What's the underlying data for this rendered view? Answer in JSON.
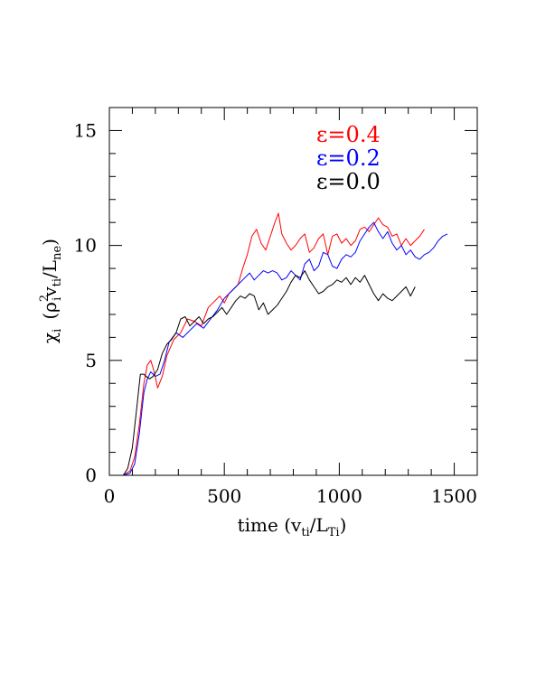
{
  "chart_data": {
    "type": "line",
    "xlabel": "time (v_ti/L_Ti)",
    "xlabel_main": "time (v",
    "xlabel_sub1": "ti",
    "xlabel_mid": "/L",
    "xlabel_sub2": "Ti",
    "xlabel_end": ")",
    "ylabel": "χ_i (ρ_i² v_ti/L_ne)",
    "ylabel_chi": "χ",
    "ylabel_i": "i",
    "ylabel_open": "(ρ",
    "ylabel_sup2": "2",
    "ylabel_sub_i": "i",
    "ylabel_v": "v",
    "ylabel_sub_ti": "ti",
    "ylabel_L": "/L",
    "ylabel_sub_ne": "ne",
    "ylabel_close": ")",
    "xlim": [
      0,
      1600
    ],
    "ylim": [
      0,
      16
    ],
    "xticks": [
      0,
      500,
      1000,
      1500
    ],
    "xtick_labels": [
      "0",
      "500",
      "1000",
      "1500"
    ],
    "yticks": [
      0,
      5,
      10,
      15
    ],
    "ytick_labels": [
      "0",
      "5",
      "10",
      "15"
    ],
    "legend_placement": "top-right",
    "series": [
      {
        "name": "ε=0.4",
        "color": "#ff0000",
        "x": [
          0,
          60,
          90,
          110,
          130,
          150,
          165,
          180,
          195,
          210,
          230,
          250,
          280,
          310,
          340,
          370,
          400,
          430,
          460,
          480,
          500,
          520,
          540,
          560,
          580,
          600,
          620,
          640,
          660,
          680,
          700,
          720,
          735,
          750,
          770,
          790,
          810,
          830,
          850,
          870,
          890,
          910,
          930,
          950,
          970,
          990,
          1010,
          1030,
          1050,
          1070,
          1090,
          1110,
          1130,
          1150,
          1170,
          1190,
          1210,
          1230,
          1250,
          1270,
          1290,
          1310,
          1330,
          1350,
          1370
        ],
        "y": [
          0,
          0,
          0.2,
          0.8,
          2.2,
          4.0,
          4.8,
          5.0,
          4.5,
          3.8,
          4.3,
          5.2,
          5.9,
          6.2,
          6.8,
          6.7,
          6.5,
          7.3,
          7.6,
          7.8,
          7.5,
          7.9,
          8.1,
          8.3,
          9.0,
          9.6,
          10.4,
          10.7,
          10.1,
          9.8,
          10.4,
          11.0,
          11.4,
          10.5,
          10.1,
          9.8,
          10.0,
          10.3,
          10.5,
          9.7,
          9.9,
          10.3,
          10.5,
          9.6,
          10.4,
          10.5,
          10.1,
          10.3,
          10.0,
          10.2,
          10.7,
          10.8,
          10.6,
          10.9,
          11.2,
          10.9,
          10.8,
          10.4,
          10.5,
          10.0,
          10.3,
          10.0,
          10.2,
          10.4,
          10.7
        ]
      },
      {
        "name": "ε=0.2",
        "color": "#0000ff",
        "x": [
          0,
          60,
          90,
          110,
          130,
          150,
          165,
          180,
          200,
          220,
          240,
          260,
          290,
          320,
          350,
          380,
          410,
          440,
          470,
          500,
          530,
          560,
          590,
          610,
          630,
          650,
          670,
          690,
          710,
          730,
          750,
          770,
          790,
          810,
          830,
          850,
          870,
          890,
          910,
          930,
          950,
          970,
          990,
          1010,
          1030,
          1050,
          1070,
          1090,
          1110,
          1130,
          1150,
          1170,
          1190,
          1210,
          1230,
          1250,
          1270,
          1290,
          1310,
          1330,
          1350,
          1370,
          1390,
          1410,
          1430,
          1450,
          1470
        ],
        "y": [
          0,
          0,
          0.1,
          0.5,
          1.8,
          3.6,
          4.2,
          4.5,
          4.3,
          4.4,
          5.0,
          5.8,
          6.2,
          6.0,
          6.3,
          6.6,
          6.4,
          6.8,
          7.2,
          7.7,
          8.0,
          8.3,
          8.6,
          8.8,
          8.5,
          8.7,
          8.9,
          8.8,
          8.9,
          8.8,
          8.5,
          8.6,
          8.9,
          8.7,
          8.5,
          9.2,
          9.4,
          8.9,
          9.1,
          9.7,
          9.6,
          9.1,
          9.0,
          9.4,
          9.6,
          9.5,
          9.7,
          10.2,
          10.5,
          10.8,
          11.0,
          10.6,
          10.3,
          10.6,
          10.1,
          9.8,
          10.0,
          9.6,
          9.8,
          9.5,
          9.4,
          9.6,
          9.7,
          9.9,
          10.2,
          10.4,
          10.5
        ]
      },
      {
        "name": "ε=0.0",
        "color": "#000000",
        "x": [
          0,
          60,
          80,
          100,
          120,
          135,
          150,
          160,
          175,
          190,
          210,
          230,
          250,
          270,
          290,
          310,
          330,
          350,
          370,
          390,
          410,
          430,
          450,
          470,
          490,
          510,
          530,
          550,
          570,
          590,
          610,
          630,
          650,
          670,
          690,
          710,
          730,
          750,
          770,
          790,
          810,
          830,
          850,
          870,
          890,
          910,
          930,
          950,
          970,
          990,
          1010,
          1030,
          1050,
          1070,
          1090,
          1110,
          1130,
          1150,
          1170,
          1190,
          1210,
          1230,
          1250,
          1270,
          1290,
          1310,
          1330
        ],
        "y": [
          0,
          0,
          0.3,
          1.2,
          3.0,
          4.4,
          4.4,
          4.3,
          4.2,
          4.3,
          4.6,
          5.3,
          5.7,
          5.9,
          6.2,
          6.8,
          6.9,
          6.5,
          6.7,
          6.9,
          6.6,
          6.8,
          6.9,
          7.1,
          7.3,
          7.0,
          7.3,
          7.6,
          7.8,
          7.7,
          7.9,
          7.8,
          7.2,
          7.5,
          7.0,
          7.2,
          7.4,
          7.7,
          8.0,
          8.4,
          8.7,
          8.6,
          8.9,
          8.5,
          8.2,
          7.9,
          8.0,
          8.2,
          8.3,
          8.5,
          8.4,
          8.6,
          8.3,
          8.6,
          8.4,
          8.7,
          8.3,
          7.9,
          7.6,
          7.9,
          7.7,
          7.6,
          7.8,
          8.0,
          8.2,
          7.8,
          8.2
        ]
      }
    ]
  }
}
